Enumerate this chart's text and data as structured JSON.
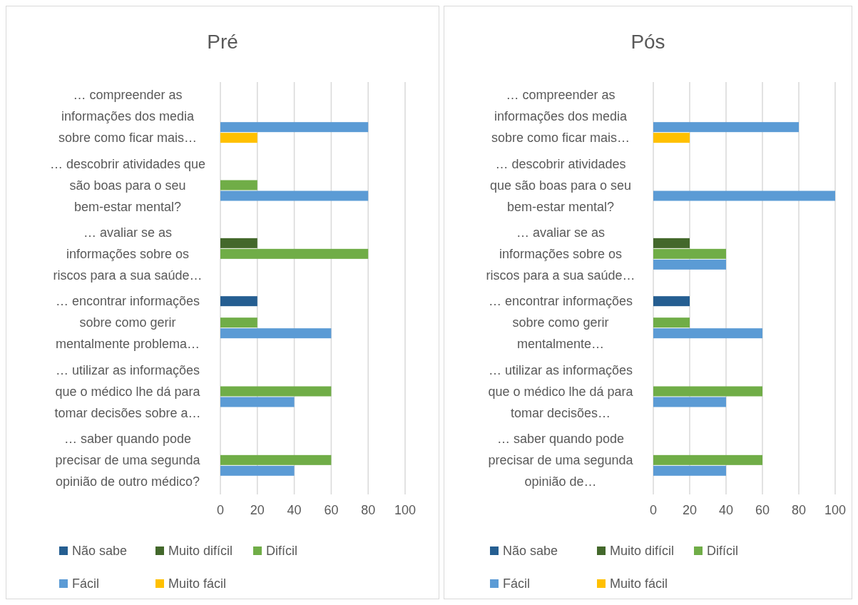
{
  "chart_data": [
    {
      "type": "bar",
      "orientation": "horizontal",
      "title": "Pré",
      "categories": [
        "… compreender as informações dos media sobre como ficar mais…",
        "… descobrir atividades que são boas para o seu bem-estar mental?",
        "… avaliar se as informações sobre os riscos para a sua saúde…",
        "… encontrar informações sobre como gerir mentalmente problema…",
        "… utilizar as informações que o médico lhe dá para tomar decisões sobre a…",
        "… saber quando pode precisar de uma segunda opinião de outro médico?"
      ],
      "xlim": [
        0,
        100
      ],
      "xticks": [
        0,
        20,
        40,
        60,
        80,
        100
      ],
      "grid": "x",
      "legend": "bottom",
      "series": [
        {
          "name": "Não sabe",
          "color": "#255e91",
          "values": [
            null,
            null,
            null,
            20,
            null,
            null
          ]
        },
        {
          "name": "Muito difícil",
          "color": "#43682b",
          "values": [
            null,
            null,
            20,
            null,
            null,
            null
          ]
        },
        {
          "name": "Difícil",
          "color": "#70ad47",
          "values": [
            null,
            20,
            80,
            20,
            60,
            60
          ]
        },
        {
          "name": "Fácil",
          "color": "#5b9bd5",
          "values": [
            80,
            80,
            null,
            60,
            40,
            40
          ]
        },
        {
          "name": "Muito fácil",
          "color": "#ffc000",
          "values": [
            20,
            null,
            null,
            null,
            null,
            null
          ]
        }
      ]
    },
    {
      "type": "bar",
      "orientation": "horizontal",
      "title": "Pós",
      "categories": [
        "… compreender as informações dos media sobre como ficar mais…",
        "… descobrir atividades que são boas para o seu bem-estar mental?",
        "… avaliar se as informações sobre os riscos para a sua saúde…",
        "… encontrar informações sobre como gerir mentalmente…",
        "… utilizar as informações que o médico lhe dá para tomar decisões…",
        "… saber quando pode precisar de uma segunda opinião de…"
      ],
      "xlim": [
        0,
        100
      ],
      "xticks": [
        0,
        20,
        40,
        60,
        80,
        100
      ],
      "grid": "x",
      "legend": "bottom",
      "series": [
        {
          "name": "Não sabe",
          "color": "#255e91",
          "values": [
            null,
            null,
            null,
            20,
            null,
            null
          ]
        },
        {
          "name": "Muito difícil",
          "color": "#43682b",
          "values": [
            null,
            null,
            20,
            null,
            null,
            null
          ]
        },
        {
          "name": "Difícil",
          "color": "#70ad47",
          "values": [
            null,
            null,
            40,
            20,
            60,
            60
          ]
        },
        {
          "name": "Fácil",
          "color": "#5b9bd5",
          "values": [
            80,
            100,
            40,
            60,
            40,
            40
          ]
        },
        {
          "name": "Muito fácil",
          "color": "#ffc000",
          "values": [
            20,
            null,
            null,
            null,
            null,
            null
          ]
        }
      ]
    }
  ]
}
